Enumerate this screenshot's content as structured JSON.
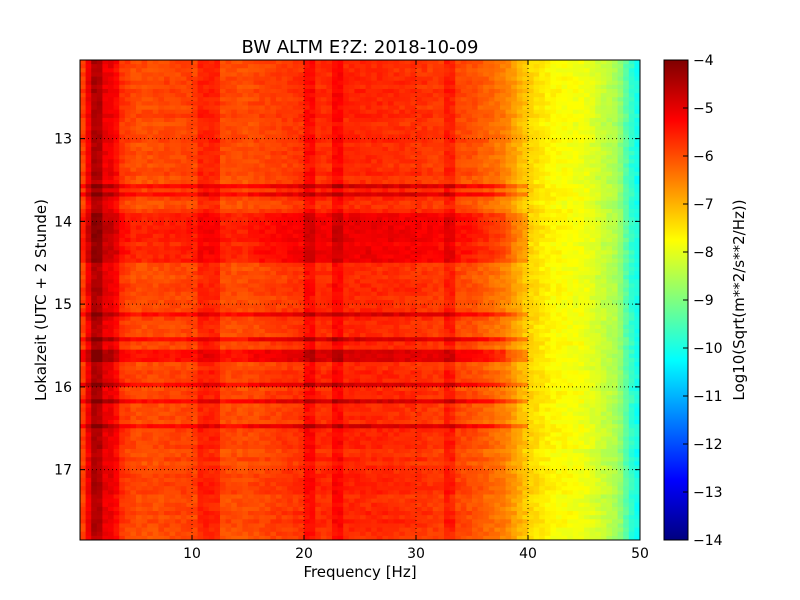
{
  "chart_data": {
    "type": "heatmap",
    "title": "BW ALTM E?Z: 2018-10-09",
    "xlabel": "Frequency [Hz]",
    "ylabel": "Lokalzeit (UTC + 2 Stunde)",
    "colorbar_label": "Log10(Sqrt(m**2/s**2/Hz))",
    "colormap": "jet",
    "xlim": [
      0,
      50
    ],
    "ylim": [
      12.05,
      17.85
    ],
    "y_inverted": true,
    "clim": [
      -14,
      -4
    ],
    "grid": true,
    "xticks": [
      10,
      20,
      30,
      40,
      50
    ],
    "xtick_labels": [
      "10",
      "20",
      "30",
      "40",
      "50"
    ],
    "yticks": [
      13,
      14,
      15,
      16,
      17
    ],
    "ytick_labels": [
      "13",
      "14",
      "15",
      "16",
      "17"
    ],
    "cbar_ticks": [
      -4,
      -5,
      -6,
      -7,
      -8,
      -9,
      -10,
      -11,
      -12,
      -13,
      -14
    ],
    "cbar_tick_labels": [
      "−4",
      "−5",
      "−6",
      "−7",
      "−8",
      "−9",
      "−10",
      "−11",
      "−12",
      "−13",
      "−14"
    ],
    "frequency_profile": {
      "frequency_hz": [
        0,
        1,
        2,
        3,
        5,
        10,
        15,
        20,
        25,
        30,
        35,
        38,
        40,
        42,
        45,
        48,
        49,
        50
      ],
      "log10_amplitude": [
        -6.2,
        -4.8,
        -4.9,
        -5.6,
        -6.0,
        -5.9,
        -6.0,
        -5.7,
        -5.6,
        -5.7,
        -6.0,
        -6.5,
        -7.3,
        -7.7,
        -7.9,
        -8.6,
        -9.6,
        -10.2
      ]
    },
    "high_energy_periods_hours": [
      [
        13.0,
        13.02
      ],
      [
        13.55,
        13.58
      ],
      [
        13.66,
        13.7
      ],
      [
        13.78,
        13.82
      ],
      [
        13.9,
        14.5
      ],
      [
        14.68,
        14.72
      ],
      [
        15.12,
        15.16
      ],
      [
        15.28,
        15.32
      ],
      [
        15.42,
        15.46
      ],
      [
        15.55,
        15.68
      ],
      [
        15.78,
        15.81
      ],
      [
        15.97,
        16.0
      ],
      [
        16.15,
        16.19
      ],
      [
        16.45,
        16.5
      ]
    ],
    "narrowband_lines_hz": [
      1.5,
      3.0,
      11.2,
      12.0,
      20.5,
      22.8,
      33.0
    ]
  }
}
